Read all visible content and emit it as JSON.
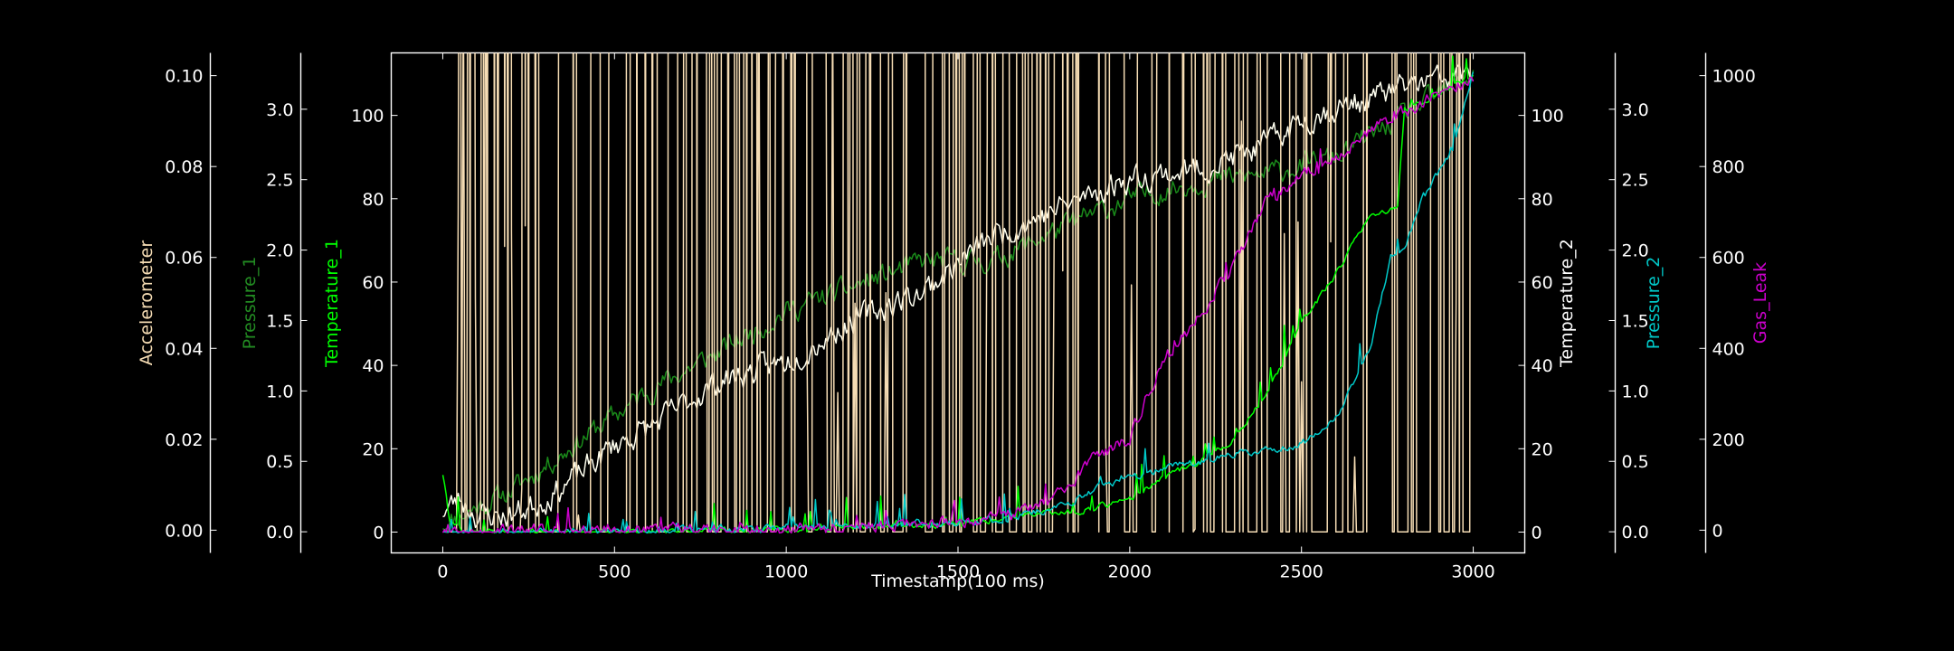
{
  "chart_data": {
    "type": "line",
    "xlabel": "Timestamp(100 ms)",
    "xlim": [
      -150,
      3150
    ],
    "x_ticks": [
      0,
      500,
      1000,
      1500,
      2000,
      2500,
      3000
    ],
    "grid": false,
    "background": "#000000",
    "axes": [
      {
        "id": "accelerometer",
        "label": "Accelerometer",
        "color": "#f5dcb4",
        "side": "left",
        "ylim": [
          -0.005,
          0.105
        ],
        "ticks": [
          "0.00",
          "0.02",
          "0.04",
          "0.06",
          "0.08",
          "0.10"
        ]
      },
      {
        "id": "pressure_1",
        "label": "Pressure_1",
        "color": "#228b22",
        "side": "left",
        "ylim": [
          -0.15,
          3.4
        ],
        "ticks": [
          "0.0",
          "0.5",
          "1.0",
          "1.5",
          "2.0",
          "2.5",
          "3.0"
        ]
      },
      {
        "id": "temperature_1",
        "label": "Temperature_1",
        "color": "#00ff00",
        "side": "left",
        "ylim": [
          -5,
          115
        ],
        "ticks": [
          "0",
          "20",
          "40",
          "60",
          "80",
          "100"
        ]
      },
      {
        "id": "temperature_2",
        "label": "Temperature_2",
        "color": "#ffffff",
        "side": "right",
        "ylim": [
          -5,
          115
        ],
        "ticks": [
          "0",
          "20",
          "40",
          "60",
          "80",
          "100"
        ]
      },
      {
        "id": "pressure_2",
        "label": "Pressure_2",
        "color": "#00c8c8",
        "side": "right",
        "ylim": [
          -0.15,
          3.4
        ],
        "ticks": [
          "0.0",
          "0.5",
          "1.0",
          "1.5",
          "2.0",
          "2.5",
          "3.0"
        ]
      },
      {
        "id": "gas_leak",
        "label": "Gas_Leak",
        "color": "#cc00cc",
        "side": "right",
        "ylim": [
          -50,
          1050
        ],
        "ticks": [
          "0",
          "200",
          "400",
          "600",
          "800",
          "1000"
        ]
      }
    ],
    "series": [
      {
        "axis": "temperature_1",
        "color": "#1a8a1a",
        "noise": 3,
        "seed": 11,
        "x": [
          0,
          50,
          200,
          400,
          600,
          800,
          1000,
          1200,
          1400,
          1600,
          1800,
          2000,
          2200,
          2400,
          2600,
          2800,
          3000
        ],
        "y": [
          2,
          4,
          10,
          22,
          34,
          43,
          53,
          59,
          65,
          65,
          73,
          80,
          84,
          86,
          90,
          100,
          110
        ]
      },
      {
        "axis": "temperature_2",
        "color": "#fffff0",
        "noise": 3.5,
        "seed": 23,
        "x": [
          0,
          50,
          100,
          200,
          300,
          400,
          500,
          600,
          800,
          1000,
          1200,
          1400,
          1600,
          1800,
          2000,
          2200,
          2400,
          2500,
          2700,
          2800,
          3000
        ],
        "y": [
          5,
          8,
          4,
          4,
          8,
          14,
          21,
          25,
          36,
          41,
          51,
          58,
          71,
          78,
          85,
          87,
          93,
          99,
          104,
          107,
          110
        ]
      },
      {
        "axis": "accelerometer",
        "color": "#f5dcb4",
        "noise": 1.5,
        "seed": 37,
        "x": [
          0,
          100,
          300,
          400,
          600,
          800,
          1000,
          1100,
          1200,
          1400,
          1500,
          1600,
          1800,
          1900,
          2100,
          2300,
          2400,
          2600,
          2700,
          2800,
          3000
        ],
        "y": [
          0.0015,
          0.0025,
          0.008,
          0.013,
          0.022,
          0.031,
          0.038,
          0.037,
          0.039,
          0.043,
          0.045,
          0.05,
          0.06,
          0.068,
          0.074,
          0.078,
          0.085,
          0.09,
          0.094,
          0.097,
          0.1
        ]
      },
      {
        "axis": "temperature_1",
        "color": "#00ff00",
        "noise": 0.8,
        "seed": 41,
        "spikes": 0.22,
        "spike_height": 8,
        "x": [
          0,
          20,
          60,
          100,
          400,
          800,
          1200,
          1500,
          1700,
          1850,
          2000,
          2100,
          2200,
          2300,
          2400,
          2500,
          2600,
          2700,
          2780,
          2800,
          3000
        ],
        "y": [
          14,
          3,
          0,
          0,
          0,
          0.5,
          1,
          2,
          4,
          5,
          8,
          13,
          17,
          22,
          33,
          50,
          62,
          76,
          78,
          101,
          110
        ]
      },
      {
        "axis": "pressure_2",
        "color": "#00c8c8",
        "noise": 0.03,
        "seed": 53,
        "spikes": 0.18,
        "spike_height": 0.2,
        "x": [
          0,
          400,
          800,
          1200,
          1600,
          1800,
          1900,
          2000,
          2100,
          2200,
          2300,
          2400,
          2500,
          2600,
          2700,
          2760,
          2800,
          2850,
          2900,
          2940,
          3000
        ],
        "y": [
          0,
          0,
          0.02,
          0.04,
          0.08,
          0.18,
          0.3,
          0.38,
          0.45,
          0.5,
          0.55,
          0.58,
          0.62,
          0.8,
          1.3,
          1.97,
          2.0,
          2.35,
          2.55,
          2.73,
          3.28
        ]
      },
      {
        "axis": "gas_leak",
        "color": "#cc00cc",
        "noise": 15,
        "seed": 67,
        "spikes": 0.15,
        "spike_height": 40,
        "x": [
          0,
          400,
          800,
          1200,
          1600,
          1700,
          1800,
          1900,
          2000,
          2050,
          2100,
          2200,
          2300,
          2400,
          2500,
          2600,
          2700,
          2800,
          2900,
          3000
        ],
        "y": [
          0,
          0,
          2,
          8,
          25,
          40,
          80,
          160,
          200,
          300,
          380,
          470,
          580,
          730,
          780,
          820,
          880,
          920,
          960,
          1000
        ]
      }
    ]
  }
}
